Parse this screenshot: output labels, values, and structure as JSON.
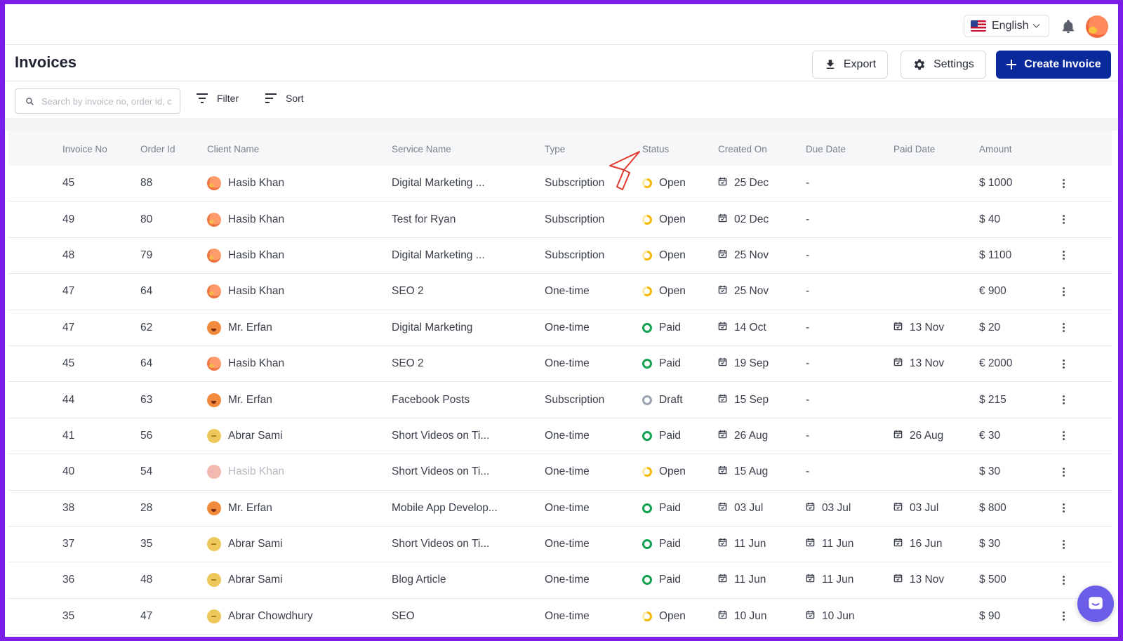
{
  "topbar": {
    "language": "English",
    "flag_icon": "us-flag-icon",
    "notification_icon": "bell-icon"
  },
  "header": {
    "title": "Invoices",
    "export_label": "Export",
    "settings_label": "Settings",
    "create_label": "Create Invoice"
  },
  "toolbar": {
    "search_placeholder": "Search by invoice no, order id, c",
    "filter_label": "Filter",
    "sort_label": "Sort"
  },
  "table": {
    "columns": [
      "Invoice No",
      "Order Id",
      "Client Name",
      "Service Name",
      "Type",
      "Status",
      "Created On",
      "Due Date",
      "Paid Date",
      "Amount"
    ],
    "rows": [
      {
        "invoice": "45",
        "order": "88",
        "client": "Hasib Khan",
        "service": "Digital Marketing ...",
        "type": "Subscription",
        "status": "Open",
        "created": "25 Dec",
        "due": "-",
        "paid": "",
        "amount": "$ 1000"
      },
      {
        "invoice": "49",
        "order": "80",
        "client": "Hasib Khan",
        "service": "Test for Ryan",
        "type": "Subscription",
        "status": "Open",
        "created": "02 Dec",
        "due": "-",
        "paid": "",
        "amount": "$ 40"
      },
      {
        "invoice": "48",
        "order": "79",
        "client": "Hasib Khan",
        "service": "Digital Marketing ...",
        "type": "Subscription",
        "status": "Open",
        "created": "25 Nov",
        "due": "-",
        "paid": "",
        "amount": "$ 1100"
      },
      {
        "invoice": "47",
        "order": "64",
        "client": "Hasib Khan",
        "service": "SEO 2",
        "type": "One-time",
        "status": "Open",
        "created": "25 Nov",
        "due": "-",
        "paid": "",
        "amount": "€ 900"
      },
      {
        "invoice": "47",
        "order": "62",
        "client": "Mr. Erfan",
        "service": "Digital Marketing",
        "type": "One-time",
        "status": "Paid",
        "created": "14 Oct",
        "due": "-",
        "paid": "13 Nov",
        "amount": "$ 20"
      },
      {
        "invoice": "45",
        "order": "64",
        "client": "Hasib Khan",
        "service": "SEO 2",
        "type": "One-time",
        "status": "Paid",
        "created": "19 Sep",
        "due": "-",
        "paid": "13 Nov",
        "amount": "€ 2000"
      },
      {
        "invoice": "44",
        "order": "63",
        "client": "Mr. Erfan",
        "service": "Facebook Posts",
        "type": "Subscription",
        "status": "Draft",
        "created": "15 Sep",
        "due": "-",
        "paid": "",
        "amount": "$ 215"
      },
      {
        "invoice": "41",
        "order": "56",
        "client": "Abrar Sami",
        "service": "Short Videos on Ti...",
        "type": "One-time",
        "status": "Paid",
        "created": "26 Aug",
        "due": "-",
        "paid": "26 Aug",
        "amount": "€ 30"
      },
      {
        "invoice": "40",
        "order": "54",
        "client": "Hasib Khan",
        "service": "Short Videos on Ti...",
        "type": "One-time",
        "status": "Open",
        "created": "15 Aug",
        "due": "-",
        "paid": "",
        "amount": "$ 30"
      },
      {
        "invoice": "38",
        "order": "28",
        "client": "Mr. Erfan",
        "service": "Mobile App Develop...",
        "type": "One-time",
        "status": "Paid",
        "created": "03 Jul",
        "due": "03 Jul",
        "paid": "03 Jul",
        "amount": "$ 800"
      },
      {
        "invoice": "37",
        "order": "35",
        "client": "Abrar Sami",
        "service": "Short Videos on Ti...",
        "type": "One-time",
        "status": "Paid",
        "created": "11 Jun",
        "due": "11 Jun",
        "paid": "16 Jun",
        "amount": "$ 30"
      },
      {
        "invoice": "36",
        "order": "48",
        "client": "Abrar Sami",
        "service": "Blog Article",
        "type": "One-time",
        "status": "Paid",
        "created": "11 Jun",
        "due": "11 Jun",
        "paid": "13 Nov",
        "amount": "$ 500"
      },
      {
        "invoice": "35",
        "order": "47",
        "client": "Abrar Chowdhury",
        "service": "SEO",
        "type": "One-time",
        "status": "Open",
        "created": "10 Jun",
        "due": "10 Jun",
        "paid": "",
        "amount": "$ 90"
      }
    ]
  },
  "colors": {
    "frame_border": "#7b1fe8",
    "primary": "#0a2a9c",
    "open": "#f5b800",
    "paid": "#12a150",
    "draft": "#9aa3b2",
    "chat": "#6b5de8"
  }
}
